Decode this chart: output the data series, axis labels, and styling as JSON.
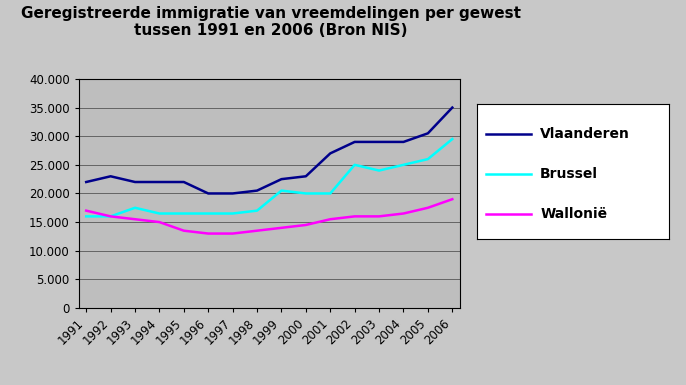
{
  "title_line1": "Geregistreerde immigratie van vreemdelingen per gewest",
  "title_line2": "tussen 1991 en 2006 (Bron NIS)",
  "years": [
    1991,
    1992,
    1993,
    1994,
    1995,
    1996,
    1997,
    1998,
    1999,
    2000,
    2001,
    2002,
    2003,
    2004,
    2005,
    2006
  ],
  "vlaanderen": [
    22000,
    23000,
    22000,
    22000,
    22000,
    20000,
    20000,
    20500,
    22500,
    23000,
    27000,
    29000,
    29000,
    29000,
    30500,
    35000
  ],
  "brussel": [
    16000,
    16000,
    17500,
    16500,
    16500,
    16500,
    16500,
    17000,
    20500,
    20000,
    20000,
    25000,
    24000,
    25000,
    26000,
    29500
  ],
  "wallonie": [
    17000,
    16000,
    15500,
    15000,
    13500,
    13000,
    13000,
    13500,
    14000,
    14500,
    15500,
    16000,
    16000,
    16500,
    17500,
    19000
  ],
  "vlaanderen_color": "#00008B",
  "brussel_color": "#00FFFF",
  "wallonie_color": "#FF00FF",
  "plot_bg_color": "#BEBEBE",
  "outer_bg_color": "#C8C8C8",
  "ylim": [
    0,
    40000
  ],
  "yticks": [
    0,
    5000,
    10000,
    15000,
    20000,
    25000,
    30000,
    35000,
    40000
  ],
  "ytick_labels": [
    "0",
    "5.000",
    "10.000",
    "15.000",
    "20.000",
    "25.000",
    "30.000",
    "35.000",
    "40.000"
  ],
  "legend_labels": [
    "Vlaanderen",
    "Brussel",
    "Wallonië"
  ],
  "title_fontsize": 11,
  "tick_fontsize": 8.5,
  "legend_fontsize": 10,
  "line_width": 1.8
}
